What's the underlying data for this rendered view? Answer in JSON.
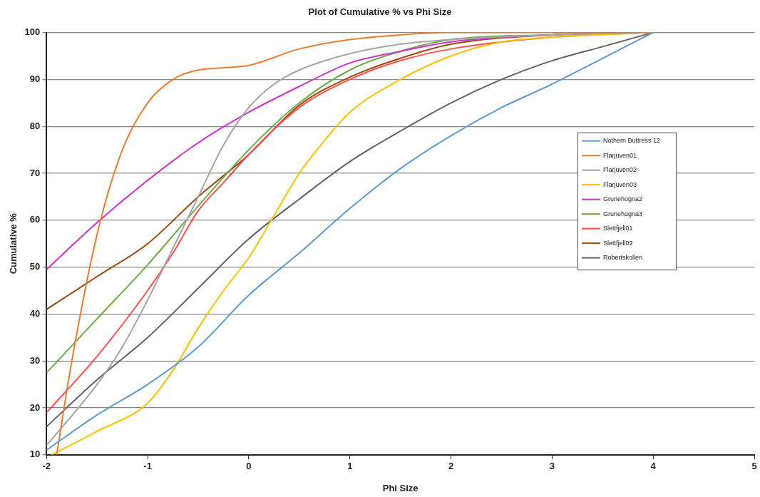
{
  "chart_data": {
    "type": "line",
    "title": "Plot of Cumulative % vs Phi Size",
    "xlabel": "Phi Size",
    "ylabel": "Cumulative %",
    "xlim": [
      -2,
      5
    ],
    "xticks": [
      -2,
      -1,
      0,
      1,
      2,
      3,
      4,
      5
    ],
    "ylim": [
      10,
      100
    ],
    "yticks": [
      10,
      20,
      30,
      40,
      50,
      60,
      70,
      80,
      90,
      100
    ],
    "grid": "y",
    "legend": "right",
    "marker": "none",
    "line_style": "solid",
    "series": [
      {
        "name": "Nothern Buttress 12",
        "color": "#5b9bd5",
        "x": [
          -2,
          -1.5,
          -1,
          -0.5,
          0,
          0.5,
          1,
          1.5,
          2,
          2.5,
          3,
          3.5,
          4
        ],
        "values": [
          11,
          18.5,
          25,
          33,
          44,
          53,
          62.5,
          71,
          78,
          84,
          89,
          94.5,
          100
        ]
      },
      {
        "name": "Flarjuven01",
        "color": "#ed7d31",
        "x": [
          -1.9,
          -1.75,
          -1.5,
          -1.25,
          -1,
          -0.75,
          -0.5,
          -0.25,
          0,
          0.5,
          1,
          1.5,
          2,
          4
        ],
        "values": [
          10,
          30,
          57,
          75,
          85,
          90,
          92,
          92.5,
          93,
          96.5,
          98.5,
          99.5,
          100,
          100
        ]
      },
      {
        "name": "Flarjuven02",
        "color": "#a5a5a5",
        "x": [
          -2,
          -1.5,
          -1.25,
          -1,
          -0.75,
          -0.5,
          -0.25,
          0,
          0.25,
          0.5,
          1,
          1.5,
          2,
          3,
          4
        ],
        "values": [
          12,
          25,
          33,
          43,
          54,
          65,
          76,
          84,
          89,
          92,
          95.5,
          97.5,
          98.5,
          99.5,
          100
        ]
      },
      {
        "name": "Flarjuven03",
        "color": "#ffc000",
        "x": [
          -1.95,
          -1.5,
          -1,
          -0.75,
          -0.5,
          -0.25,
          0,
          0.25,
          0.5,
          0.75,
          1,
          1.5,
          2,
          2.5,
          3,
          4
        ],
        "values": [
          10,
          15,
          21,
          28,
          37,
          45,
          52,
          61,
          70,
          77,
          83,
          90,
          95,
          98,
          99,
          100
        ]
      },
      {
        "name": "Grunehogna2",
        "color": "#cc33cc",
        "x": [
          -2,
          -1.5,
          -1,
          -0.5,
          0,
          0.5,
          1,
          1.5,
          2,
          3,
          4
        ],
        "values": [
          49.5,
          59.5,
          68.5,
          76.5,
          83,
          88.5,
          93.5,
          96,
          98,
          99.5,
          100
        ]
      },
      {
        "name": "Grunehogna3",
        "color": "#70ad47",
        "x": [
          -2,
          -1.5,
          -1,
          -0.5,
          0,
          0.5,
          1,
          1.5,
          2,
          3,
          4
        ],
        "values": [
          27.5,
          39,
          50.5,
          63,
          75,
          85,
          92,
          96,
          98.5,
          99.5,
          100
        ]
      },
      {
        "name": "Slettfjell01",
        "color": "#ff5050",
        "x": [
          -2,
          -1.5,
          -1,
          -0.75,
          -0.5,
          -0.25,
          0,
          0.5,
          1,
          1.5,
          2,
          3,
          4
        ],
        "values": [
          19,
          31,
          45,
          53,
          62,
          68,
          74,
          84,
          90,
          94,
          96.5,
          99,
          100
        ]
      },
      {
        "name": "Slettfjell02",
        "color": "#9e480e",
        "x": [
          -2,
          -1.5,
          -1,
          -0.5,
          0,
          0.5,
          1,
          1.5,
          2,
          3,
          4
        ],
        "values": [
          41,
          48,
          55,
          65,
          74,
          84.5,
          90.5,
          94.5,
          97.5,
          99.5,
          100
        ]
      },
      {
        "name": "Robertskollen",
        "color": "#636363",
        "x": [
          -2,
          -1.5,
          -1,
          -0.5,
          0,
          0.5,
          1,
          1.5,
          2,
          2.5,
          3,
          3.5,
          4
        ],
        "values": [
          16,
          26,
          35,
          45.5,
          56,
          64.5,
          72.5,
          79,
          85,
          90,
          94,
          97,
          100
        ]
      }
    ]
  }
}
